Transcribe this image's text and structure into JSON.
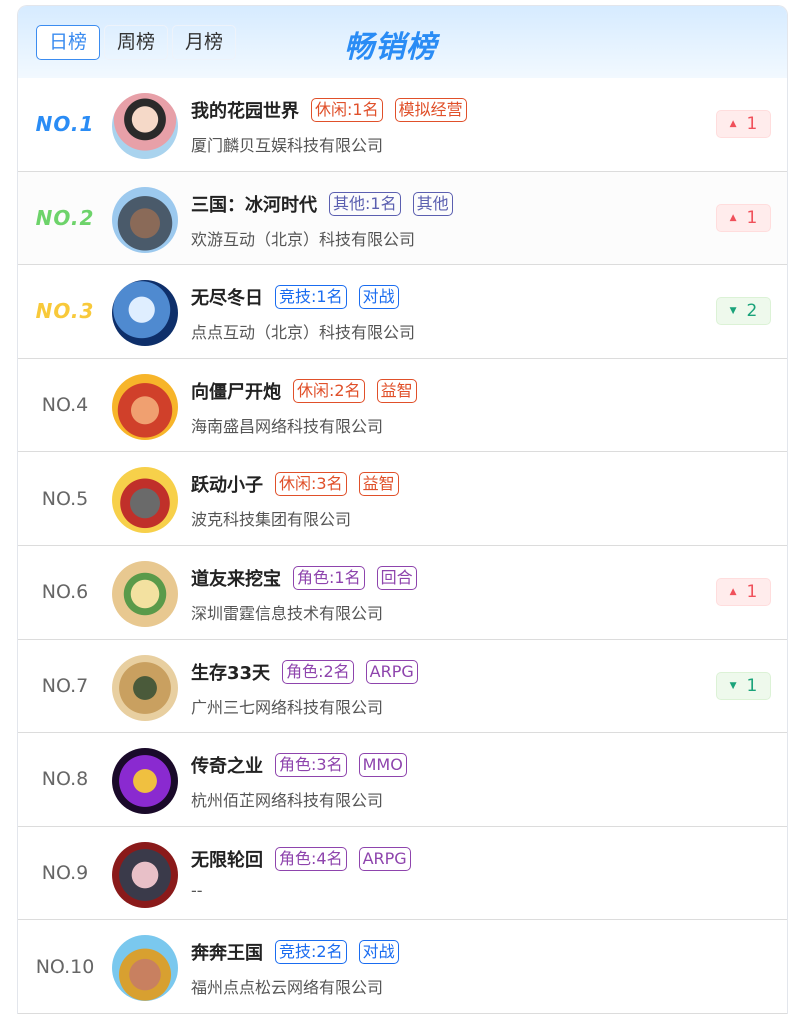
{
  "header": {
    "tabs": [
      "日榜",
      "周榜",
      "月榜"
    ],
    "active_tab": "日榜",
    "title": "畅销榜"
  },
  "colors": {
    "accent": "#3b8cf0",
    "up": "#f0505a",
    "down": "#1aa37a",
    "tag_leisure": "#e0502a",
    "tag_other": "#5b5fb0",
    "tag_role": "#8e44ad",
    "tag_competitive": "#1a6cf0"
  },
  "rows": [
    {
      "rank": "NO.1",
      "name": "我的花园世界",
      "tags": [
        "休闲:1名",
        "模拟经营"
      ],
      "tag_color": "#e0502a",
      "company": "厦门麟贝互娱科技有限公司",
      "trend": "up",
      "change": "1",
      "rank_color": "#2a8cf5"
    },
    {
      "rank": "NO.2",
      "name": "三国：冰河时代",
      "tags": [
        "其他:1名",
        "其他"
      ],
      "tag_color": "#5b5fb0",
      "company": "欢游互动（北京）科技有限公司",
      "trend": "up",
      "change": "1",
      "rank_color": "#6dd36a"
    },
    {
      "rank": "NO.3",
      "name": "无尽冬日",
      "tags": [
        "竞技:1名",
        "对战"
      ],
      "tag_color": "#1a6cf0",
      "company": "点点互动（北京）科技有限公司",
      "trend": "down",
      "change": "2",
      "rank_color": "#f8c93a"
    },
    {
      "rank": "NO.4",
      "name": "向僵尸开炮",
      "tags": [
        "休闲:2名",
        "益智"
      ],
      "tag_color": "#e0502a",
      "company": "海南盛昌网络科技有限公司",
      "trend": null,
      "change": null
    },
    {
      "rank": "NO.5",
      "name": "跃动小子",
      "tags": [
        "休闲:3名",
        "益智"
      ],
      "tag_color": "#e0502a",
      "company": "波克科技集团有限公司",
      "trend": null,
      "change": null
    },
    {
      "rank": "NO.6",
      "name": "道友来挖宝",
      "tags": [
        "角色:1名",
        "回合"
      ],
      "tag_color": "#8e44ad",
      "company": "深圳雷霆信息技术有限公司",
      "trend": "up",
      "change": "1"
    },
    {
      "rank": "NO.7",
      "name": "生存33天",
      "tags": [
        "角色:2名",
        "ARPG"
      ],
      "tag_color": "#8e44ad",
      "company": "广州三七网络科技有限公司",
      "trend": "down",
      "change": "1"
    },
    {
      "rank": "NO.8",
      "name": "传奇之业",
      "tags": [
        "角色:3名",
        "MMO"
      ],
      "tag_color": "#8e44ad",
      "company": "杭州佰芷网络科技有限公司",
      "trend": null,
      "change": null
    },
    {
      "rank": "NO.9",
      "name": "无限轮回",
      "tags": [
        "角色:4名",
        "ARPG"
      ],
      "tag_color": "#8e44ad",
      "company": "--",
      "trend": null,
      "change": null
    },
    {
      "rank": "NO.10",
      "name": "奔奔王国",
      "tags": [
        "竞技:2名",
        "对战"
      ],
      "tag_color": "#1a6cf0",
      "company": "福州点点松云网络有限公司",
      "trend": null,
      "change": null
    }
  ]
}
